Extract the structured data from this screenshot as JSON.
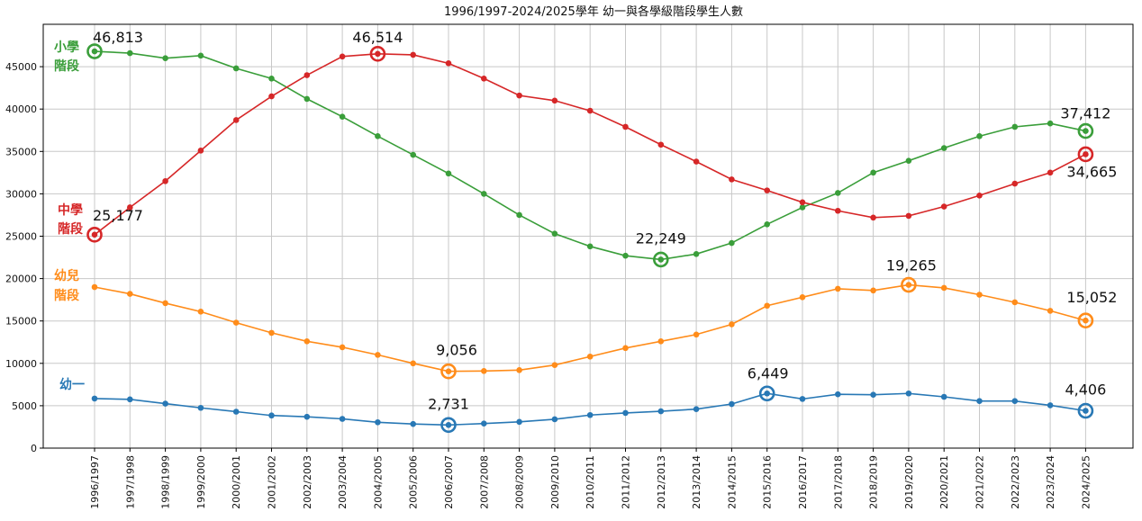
{
  "chart_data": {
    "type": "line",
    "title": "1996/1997-2024/2025學年  幼一與各學級階段學生人數",
    "xlabel": "",
    "ylabel": "",
    "ylim": [
      0,
      50000
    ],
    "y_ticks": [
      0,
      5000,
      10000,
      15000,
      20000,
      25000,
      30000,
      35000,
      40000,
      45000
    ],
    "grid": true,
    "categories": [
      "1996/1997",
      "1997/1998",
      "1998/1999",
      "1999/2000",
      "2000/2001",
      "2001/2002",
      "2002/2003",
      "2003/2004",
      "2004/2005",
      "2005/2006",
      "2006/2007",
      "2007/2008",
      "2008/2009",
      "2009/2010",
      "2010/2011",
      "2011/2012",
      "2012/2013",
      "2013/2014",
      "2014/2015",
      "2015/2016",
      "2016/2017",
      "2017/2018",
      "2018/2019",
      "2019/2020",
      "2020/2021",
      "2021/2022",
      "2022/2023",
      "2023/2024",
      "2024/2025"
    ],
    "series": [
      {
        "key": "primary",
        "label_lines": [
          "小學",
          "階段"
        ],
        "color": "#3a9e3a",
        "values": [
          46813,
          46600,
          46000,
          46300,
          44800,
          43600,
          41200,
          39100,
          36800,
          34600,
          32400,
          30000,
          27500,
          25300,
          23800,
          22700,
          22249,
          22900,
          24200,
          26400,
          28400,
          30100,
          32500,
          33900,
          35400,
          36800,
          37900,
          38300,
          37412
        ],
        "highlights": [
          {
            "index": 0,
            "text": "46,813"
          },
          {
            "index": 16,
            "text": "22,249"
          },
          {
            "index": 28,
            "text": "37,412"
          }
        ]
      },
      {
        "key": "secondary",
        "label_lines": [
          "中學",
          "階段"
        ],
        "color": "#d62728",
        "values": [
          25177,
          28400,
          31500,
          35100,
          38700,
          41500,
          44000,
          46200,
          46514,
          46400,
          45400,
          43600,
          41600,
          41000,
          39800,
          37900,
          35800,
          33800,
          31700,
          30400,
          29000,
          28000,
          27200,
          27400,
          28500,
          29800,
          31200,
          32500,
          34665
        ],
        "highlights": [
          {
            "index": 0,
            "text": "25,177"
          },
          {
            "index": 8,
            "text": "46,514"
          },
          {
            "index": 28,
            "text": "34,665"
          }
        ]
      },
      {
        "key": "kindergarten",
        "label_lines": [
          "幼兒",
          "階段"
        ],
        "color": "#ff8c1a",
        "values": [
          19000,
          18200,
          17100,
          16100,
          14800,
          13600,
          12600,
          11900,
          11000,
          10000,
          9056,
          9100,
          9200,
          9800,
          10800,
          11800,
          12600,
          13400,
          14600,
          16800,
          17800,
          18800,
          18600,
          19265,
          18900,
          18100,
          17200,
          16200,
          15052
        ],
        "highlights": [
          {
            "index": 10,
            "text": "9,056"
          },
          {
            "index": 23,
            "text": "19,265"
          },
          {
            "index": 28,
            "text": "15,052"
          }
        ]
      },
      {
        "key": "k1",
        "label_lines": [
          "幼一"
        ],
        "color": "#2878b5",
        "values": [
          5850,
          5750,
          5250,
          4750,
          4300,
          3850,
          3700,
          3450,
          3050,
          2850,
          2731,
          2900,
          3100,
          3400,
          3900,
          4150,
          4350,
          4600,
          5200,
          6449,
          5800,
          6350,
          6300,
          6450,
          6050,
          5550,
          5550,
          5050,
          4406
        ],
        "highlights": [
          {
            "index": 10,
            "text": "2,731"
          },
          {
            "index": 19,
            "text": "6,449"
          },
          {
            "index": 28,
            "text": "4,406"
          }
        ]
      }
    ]
  }
}
